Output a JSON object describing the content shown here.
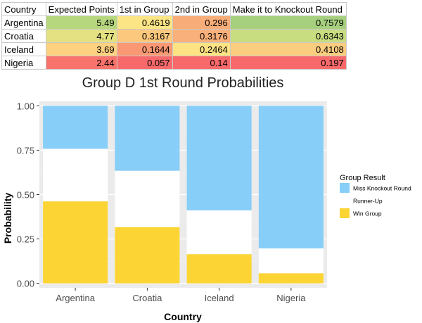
{
  "table": {
    "headers": [
      "Country",
      "Expected Points",
      "1st in Group",
      "2nd in Group",
      "Make it to Knockout Round"
    ],
    "rows": [
      {
        "country": "Argentina",
        "values": [
          "5.49",
          "0.4619",
          "0.296",
          "0.7579"
        ],
        "colors": [
          "#b7d77e",
          "#fbe584",
          "#f8ac78",
          "#a6d07e"
        ]
      },
      {
        "country": "Croatia",
        "values": [
          "4.77",
          "0.3167",
          "0.3176",
          "0.6343"
        ],
        "colors": [
          "#e4e182",
          "#fcc87d",
          "#f9b07a",
          "#c8dc80"
        ]
      },
      {
        "country": "Iceland",
        "values": [
          "3.69",
          "0.1644",
          "0.2464",
          "0.4108"
        ],
        "colors": [
          "#fdd17f",
          "#fa9873",
          "#fde383",
          "#fbcd7f"
        ]
      },
      {
        "country": "Nigeria",
        "values": [
          "2.44",
          "0.057",
          "0.14",
          "0.197"
        ],
        "colors": [
          "#f8736b",
          "#f8696b",
          "#f8696b",
          "#f8696b"
        ]
      }
    ]
  },
  "chart_data": {
    "type": "bar",
    "stacked": true,
    "title": "Group D 1st Round Probabilities",
    "xlabel": "Country",
    "ylabel": "Probability",
    "categories": [
      "Argentina",
      "Croatia",
      "Iceland",
      "Nigeria"
    ],
    "yticks": [
      "0.00",
      "0.25",
      "0.50",
      "0.75",
      "1.00"
    ],
    "ylim": [
      0,
      1
    ],
    "grid": true,
    "legend_position": "right",
    "legend_title": "Group Result",
    "series": [
      {
        "name": "Win Group",
        "color": "#fcd535",
        "values": [
          0.4619,
          0.3167,
          0.1644,
          0.057
        ]
      },
      {
        "name": "Runner-Up",
        "color": "#ffffff",
        "values": [
          0.296,
          0.3176,
          0.2464,
          0.14
        ]
      },
      {
        "name": "Miss Knockout Round",
        "color": "#87cef8",
        "values": [
          0.2421,
          0.3657,
          0.5892,
          0.803
        ]
      }
    ],
    "legend_order": [
      "Miss Knockout Round",
      "Runner-Up",
      "Win Group"
    ]
  }
}
